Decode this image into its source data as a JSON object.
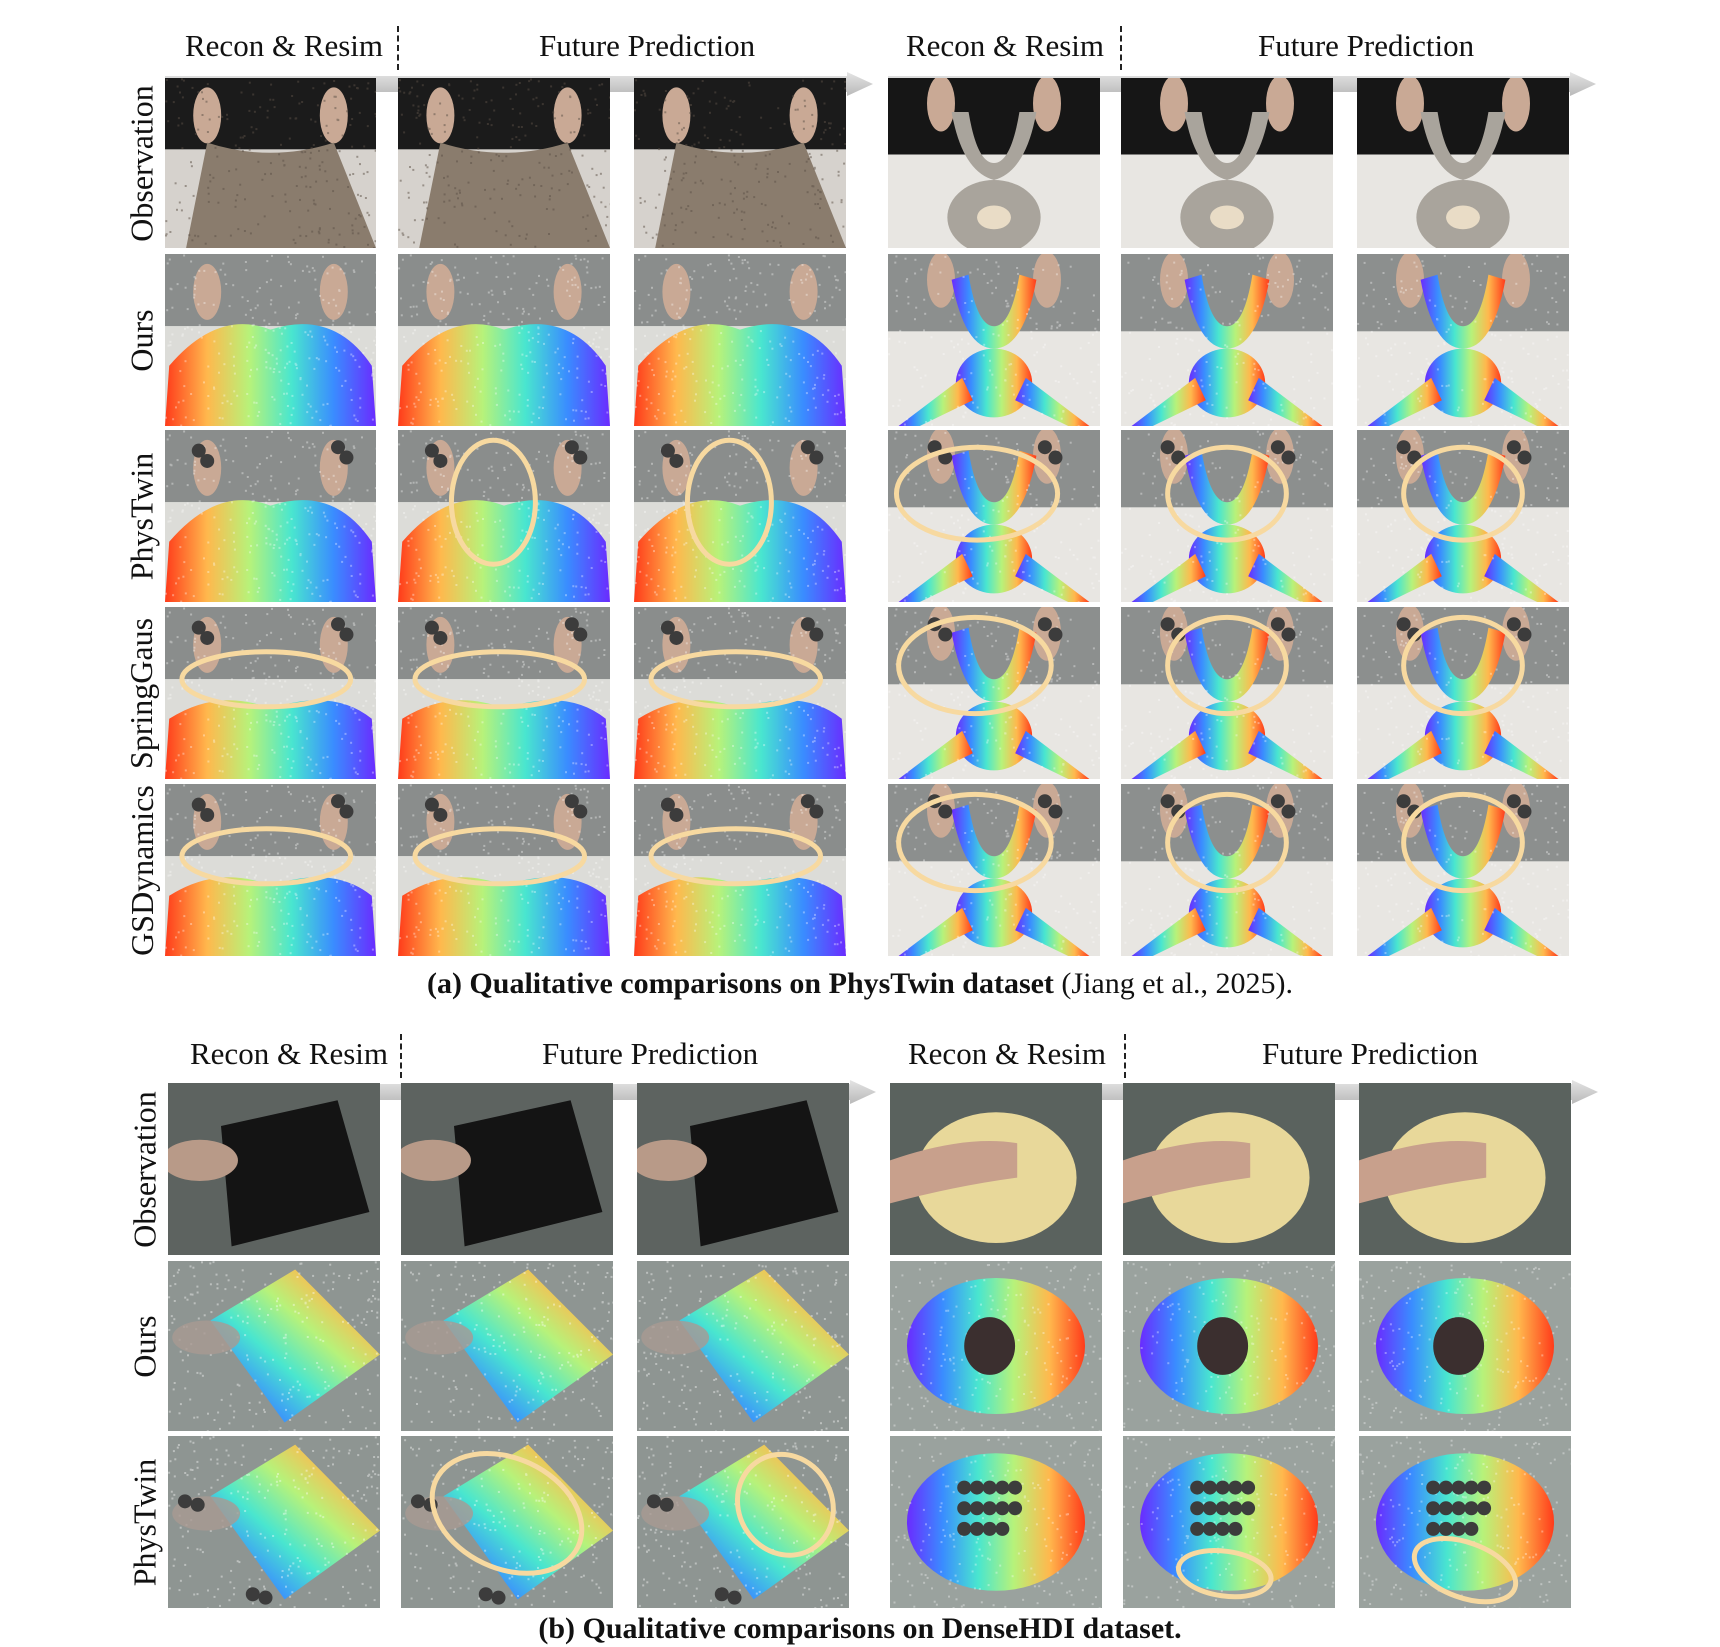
{
  "colors": {
    "highlight_ellipse": "#f7d9a0",
    "timeline_arrow": "#c8c8c8",
    "particle_gradient": [
      "#ff3b1a",
      "#ffb84d",
      "#b7f27a",
      "#49e6cf",
      "#3a8cff",
      "#6a2bff"
    ]
  },
  "figure_a": {
    "timeline": [
      {
        "recon_label": "Recon & Resim",
        "future_label": "Future Prediction"
      },
      {
        "recon_label": "Recon & Resim",
        "future_label": "Future Prediction"
      }
    ],
    "rows": [
      "Observation",
      "Ours",
      "PhysTwin",
      "SpringGaus",
      "GSDynamics"
    ],
    "caption": {
      "bold": "(a) Qualitative comparisons on PhysTwin dataset",
      "normal": " (Jiang et al., 2025)."
    }
  },
  "figure_b": {
    "timeline": [
      {
        "recon_label": "Recon & Resim",
        "future_label": "Future Prediction"
      },
      {
        "recon_label": "Recon & Resim",
        "future_label": "Future Prediction"
      }
    ],
    "rows": [
      "Observation",
      "Ours",
      "PhysTwin"
    ],
    "caption": {
      "bold": "(b) Qualitative comparisons on DenseHDI dataset.",
      "normal": ""
    }
  }
}
